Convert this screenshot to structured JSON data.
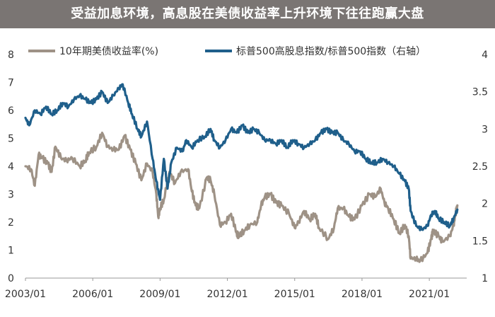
{
  "banner": {
    "title": "受益加息环境，高息股在美债收益率上升环境下往往跑赢大盘",
    "bg_color": "#7a7573"
  },
  "chart_data": {
    "type": "line",
    "title": "受益加息环境，高息股在美债收益率上升环境下往往跑赢大盘",
    "x_ticks": [
      "2003/01",
      "2006/01",
      "2009/01",
      "2012/01",
      "2015/01",
      "2018/01",
      "2021/01"
    ],
    "x_range": [
      "2003-01",
      "2022-09"
    ],
    "y_left": {
      "range": [
        0,
        8
      ],
      "ticks": [
        "0",
        "1",
        "2",
        "3",
        "4",
        "5",
        "6",
        "7",
        "8"
      ]
    },
    "y_right": {
      "range": [
        1,
        4
      ],
      "ticks": [
        "1",
        "1.5",
        "2",
        "2.5",
        "3",
        "3.5",
        "4"
      ]
    },
    "grid": false,
    "legend_position": "top",
    "series": [
      {
        "name": "10年期美债收益率(%)",
        "axis": "left",
        "color": "#9e9286",
        "points": [
          [
            "2003-01",
            4.0
          ],
          [
            "2003-04",
            3.9
          ],
          [
            "2003-06",
            3.3
          ],
          [
            "2003-08",
            4.4
          ],
          [
            "2003-10",
            4.3
          ],
          [
            "2004-01",
            4.1
          ],
          [
            "2004-03",
            3.8
          ],
          [
            "2004-05",
            4.7
          ],
          [
            "2004-08",
            4.3
          ],
          [
            "2004-11",
            4.2
          ],
          [
            "2005-02",
            4.3
          ],
          [
            "2005-06",
            4.0
          ],
          [
            "2005-09",
            4.2
          ],
          [
            "2005-11",
            4.5
          ],
          [
            "2006-03",
            4.7
          ],
          [
            "2006-06",
            5.2
          ],
          [
            "2006-09",
            4.7
          ],
          [
            "2006-12",
            4.6
          ],
          [
            "2007-03",
            4.6
          ],
          [
            "2007-06",
            5.1
          ],
          [
            "2007-09",
            4.6
          ],
          [
            "2007-12",
            4.1
          ],
          [
            "2008-03",
            3.5
          ],
          [
            "2008-06",
            4.1
          ],
          [
            "2008-09",
            3.8
          ],
          [
            "2008-11",
            3.0
          ],
          [
            "2008-12",
            2.2
          ],
          [
            "2009-01",
            2.5
          ],
          [
            "2009-03",
            2.8
          ],
          [
            "2009-06",
            3.8
          ],
          [
            "2009-09",
            3.4
          ],
          [
            "2009-12",
            3.8
          ],
          [
            "2010-04",
            3.9
          ],
          [
            "2010-06",
            3.1
          ],
          [
            "2010-08",
            2.6
          ],
          [
            "2010-10",
            2.5
          ],
          [
            "2011-02",
            3.6
          ],
          [
            "2011-04",
            3.5
          ],
          [
            "2011-06",
            3.0
          ],
          [
            "2011-09",
            1.9
          ],
          [
            "2011-12",
            2.0
          ],
          [
            "2012-03",
            2.3
          ],
          [
            "2012-06",
            1.6
          ],
          [
            "2012-07",
            1.5
          ],
          [
            "2012-10",
            1.7
          ],
          [
            "2013-01",
            1.9
          ],
          [
            "2013-05",
            2.0
          ],
          [
            "2013-07",
            2.6
          ],
          [
            "2013-09",
            2.9
          ],
          [
            "2013-12",
            3.0
          ],
          [
            "2014-03",
            2.7
          ],
          [
            "2014-06",
            2.6
          ],
          [
            "2014-10",
            2.3
          ],
          [
            "2015-01",
            1.8
          ],
          [
            "2015-03",
            2.0
          ],
          [
            "2015-06",
            2.4
          ],
          [
            "2015-09",
            2.1
          ],
          [
            "2015-12",
            2.3
          ],
          [
            "2016-02",
            1.8
          ],
          [
            "2016-07",
            1.4
          ],
          [
            "2016-10",
            1.8
          ],
          [
            "2016-12",
            2.5
          ],
          [
            "2017-03",
            2.5
          ],
          [
            "2017-06",
            2.2
          ],
          [
            "2017-09",
            2.1
          ],
          [
            "2018-01",
            2.6
          ],
          [
            "2018-05",
            3.0
          ],
          [
            "2018-08",
            2.9
          ],
          [
            "2018-11",
            3.2
          ],
          [
            "2019-01",
            2.7
          ],
          [
            "2019-03",
            2.5
          ],
          [
            "2019-06",
            2.1
          ],
          [
            "2019-09",
            1.6
          ],
          [
            "2019-12",
            1.9
          ],
          [
            "2020-02",
            1.5
          ],
          [
            "2020-03",
            0.7
          ],
          [
            "2020-06",
            0.7
          ],
          [
            "2020-08",
            0.6
          ],
          [
            "2020-12",
            0.9
          ],
          [
            "2021-02",
            1.4
          ],
          [
            "2021-03",
            1.7
          ],
          [
            "2021-06",
            1.5
          ],
          [
            "2021-08",
            1.3
          ],
          [
            "2021-12",
            1.5
          ],
          [
            "2022-02",
            1.9
          ],
          [
            "2022-03",
            2.3
          ],
          [
            "2022-04",
            2.6
          ]
        ]
      },
      {
        "name": "标普500高股息指数/标普500指数（右轴）",
        "axis": "right",
        "color": "#1f5f8b",
        "points": [
          [
            "2003-01",
            3.15
          ],
          [
            "2003-03",
            3.05
          ],
          [
            "2003-06",
            3.25
          ],
          [
            "2003-09",
            3.2
          ],
          [
            "2003-12",
            3.3
          ],
          [
            "2004-03",
            3.2
          ],
          [
            "2004-06",
            3.25
          ],
          [
            "2004-09",
            3.35
          ],
          [
            "2004-12",
            3.3
          ],
          [
            "2005-03",
            3.4
          ],
          [
            "2005-06",
            3.45
          ],
          [
            "2005-09",
            3.4
          ],
          [
            "2005-12",
            3.35
          ],
          [
            "2006-03",
            3.4
          ],
          [
            "2006-06",
            3.5
          ],
          [
            "2006-09",
            3.35
          ],
          [
            "2006-12",
            3.45
          ],
          [
            "2007-03",
            3.55
          ],
          [
            "2007-05",
            3.6
          ],
          [
            "2007-08",
            3.35
          ],
          [
            "2007-10",
            3.2
          ],
          [
            "2008-01",
            3.0
          ],
          [
            "2008-03",
            2.9
          ],
          [
            "2008-06",
            3.1
          ],
          [
            "2008-09",
            2.6
          ],
          [
            "2008-11",
            2.3
          ],
          [
            "2009-01",
            2.05
          ],
          [
            "2009-03",
            2.6
          ],
          [
            "2009-05",
            2.2
          ],
          [
            "2009-07",
            2.55
          ],
          [
            "2009-10",
            2.75
          ],
          [
            "2010-01",
            2.7
          ],
          [
            "2010-03",
            2.85
          ],
          [
            "2010-06",
            2.75
          ],
          [
            "2010-09",
            2.85
          ],
          [
            "2011-01",
            2.9
          ],
          [
            "2011-04",
            3.0
          ],
          [
            "2011-06",
            2.85
          ],
          [
            "2011-09",
            2.75
          ],
          [
            "2011-12",
            2.85
          ],
          [
            "2012-03",
            3.0
          ],
          [
            "2012-06",
            2.95
          ],
          [
            "2012-09",
            3.05
          ],
          [
            "2012-12",
            2.95
          ],
          [
            "2013-03",
            3.0
          ],
          [
            "2013-06",
            2.95
          ],
          [
            "2013-09",
            2.85
          ],
          [
            "2013-12",
            2.85
          ],
          [
            "2014-03",
            2.8
          ],
          [
            "2014-06",
            2.85
          ],
          [
            "2014-09",
            2.75
          ],
          [
            "2014-12",
            2.85
          ],
          [
            "2015-03",
            2.8
          ],
          [
            "2015-06",
            2.75
          ],
          [
            "2015-09",
            2.8
          ],
          [
            "2015-12",
            2.85
          ],
          [
            "2016-03",
            2.95
          ],
          [
            "2016-06",
            3.0
          ],
          [
            "2016-09",
            2.95
          ],
          [
            "2016-12",
            2.95
          ],
          [
            "2017-03",
            2.85
          ],
          [
            "2017-06",
            2.8
          ],
          [
            "2017-09",
            2.7
          ],
          [
            "2017-12",
            2.7
          ],
          [
            "2018-03",
            2.6
          ],
          [
            "2018-06",
            2.55
          ],
          [
            "2018-09",
            2.55
          ],
          [
            "2018-12",
            2.6
          ],
          [
            "2019-03",
            2.55
          ],
          [
            "2019-06",
            2.5
          ],
          [
            "2019-09",
            2.4
          ],
          [
            "2019-12",
            2.3
          ],
          [
            "2020-02",
            2.2
          ],
          [
            "2020-03",
            1.9
          ],
          [
            "2020-06",
            1.7
          ],
          [
            "2020-09",
            1.65
          ],
          [
            "2020-12",
            1.7
          ],
          [
            "2021-02",
            1.85
          ],
          [
            "2021-04",
            1.9
          ],
          [
            "2021-06",
            1.8
          ],
          [
            "2021-09",
            1.75
          ],
          [
            "2021-12",
            1.7
          ],
          [
            "2022-02",
            1.8
          ],
          [
            "2022-04",
            1.92
          ]
        ]
      }
    ]
  }
}
